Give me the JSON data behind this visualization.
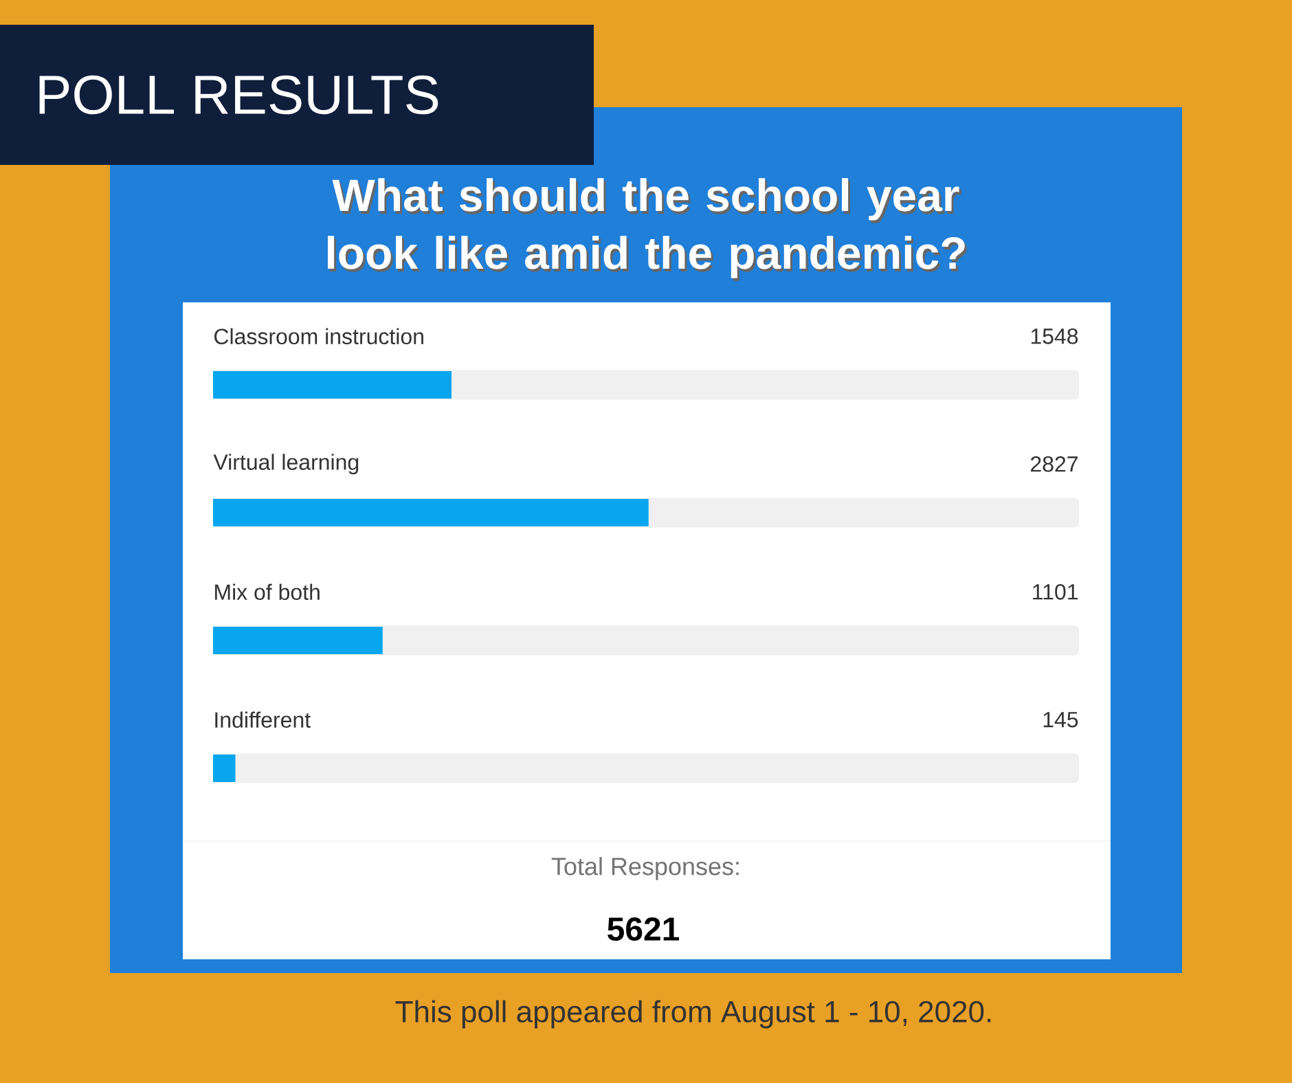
{
  "chart_data": {
    "type": "bar",
    "orientation": "horizontal",
    "title": "What should the school year look like amid the pandemic?",
    "categories": [
      "Classroom instruction",
      "Virtual learning",
      "Mix of both",
      "Indifferent"
    ],
    "values": [
      1548,
      2827,
      1101,
      145
    ],
    "color": "#08a6ef",
    "xlim": [
      0,
      5621
    ],
    "data_labels": true,
    "annotations": [
      "POLL RESULTS",
      "Total Responses:",
      "5621",
      "This poll appeared from August 1 - 10, 2020."
    ]
  }
}
